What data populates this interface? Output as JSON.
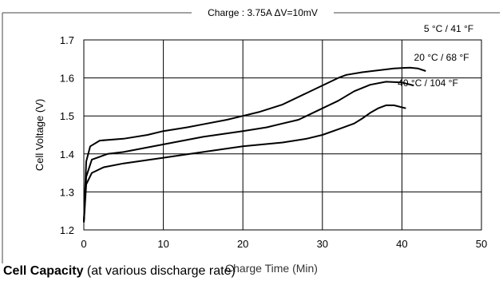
{
  "chart_data": {
    "type": "line",
    "title": "Charge : 3.75A  ΔV=10mV",
    "xlabel": "Charge Time (Min)",
    "ylabel": "Cell Voltage (V)",
    "xlim": [
      0,
      50
    ],
    "ylim": [
      1.2,
      1.7
    ],
    "x_ticks": [
      "0",
      "10",
      "20",
      "30",
      "40",
      "50"
    ],
    "y_ticks": [
      "1.2",
      "1.3",
      "1.4",
      "1.5",
      "1.6",
      "1.7"
    ],
    "grid": true,
    "series": [
      {
        "name": "5 °C / 41 °F",
        "x": [
          0,
          0.3,
          0.8,
          2,
          5,
          8,
          10,
          13,
          15,
          18,
          20,
          22,
          25,
          28,
          30,
          32,
          33,
          35,
          37,
          39,
          41,
          42,
          43
        ],
        "y": [
          1.22,
          1.38,
          1.42,
          1.435,
          1.44,
          1.45,
          1.46,
          1.47,
          1.478,
          1.49,
          1.5,
          1.51,
          1.53,
          1.56,
          1.58,
          1.6,
          1.608,
          1.615,
          1.62,
          1.625,
          1.627,
          1.625,
          1.618
        ]
      },
      {
        "name": "20 °C / 68 °F",
        "x": [
          0,
          0.3,
          1,
          3,
          5,
          10,
          15,
          20,
          23,
          25,
          27,
          30,
          32,
          34,
          36,
          38,
          40,
          41.5
        ],
        "y": [
          1.22,
          1.34,
          1.385,
          1.4,
          1.405,
          1.425,
          1.445,
          1.46,
          1.47,
          1.48,
          1.49,
          1.52,
          1.54,
          1.565,
          1.582,
          1.59,
          1.588,
          1.58
        ]
      },
      {
        "name": "40 °C / 104 °F",
        "x": [
          0,
          0.3,
          1,
          2.5,
          5,
          10,
          15,
          20,
          25,
          28,
          30,
          32,
          34,
          35,
          36,
          37,
          38,
          39,
          40.5
        ],
        "y": [
          1.22,
          1.32,
          1.35,
          1.365,
          1.375,
          1.39,
          1.405,
          1.42,
          1.43,
          1.44,
          1.45,
          1.465,
          1.48,
          1.493,
          1.508,
          1.52,
          1.528,
          1.528,
          1.52
        ]
      }
    ]
  },
  "caption": {
    "bold": "Cell Capacity",
    "rest": " (at various discharge rate)"
  },
  "colors": {
    "line": "#000000",
    "grid": "#000000",
    "background": "#ffffff"
  }
}
